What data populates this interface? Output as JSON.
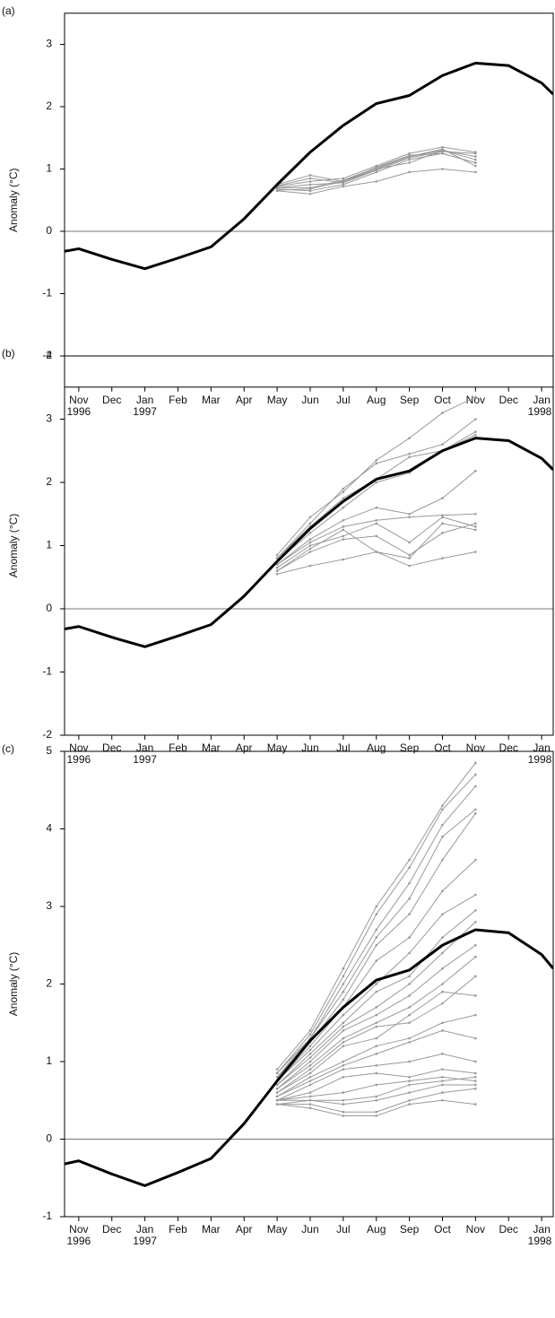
{
  "chart_data": [
    {
      "type": "line",
      "panel_label": "(a)",
      "y_label": "Anomaly (°C)",
      "xlim": [
        -0.43,
        14.35
      ],
      "xticks": [
        {
          "value": 0,
          "label": "Nov"
        },
        {
          "value": 1,
          "label": "Dec"
        },
        {
          "value": 2,
          "label": "Jan"
        },
        {
          "value": 3,
          "label": "Feb"
        },
        {
          "value": 4,
          "label": "Mar"
        },
        {
          "value": 5,
          "label": "Apr"
        },
        {
          "value": 6,
          "label": "May"
        },
        {
          "value": 7,
          "label": "Jun"
        },
        {
          "value": 8,
          "label": "Jul"
        },
        {
          "value": 9,
          "label": "Aug"
        },
        {
          "value": 10,
          "label": "Sep"
        },
        {
          "value": 11,
          "label": "Oct"
        },
        {
          "value": 12,
          "label": "Nov"
        },
        {
          "value": 13,
          "label": "Dec"
        },
        {
          "value": 14,
          "label": "Jan"
        }
      ],
      "year_labels": [
        {
          "value": 0,
          "label": "1996"
        },
        {
          "value": 2,
          "label": "1997"
        },
        {
          "value": 14,
          "label": "1998"
        }
      ],
      "ylim": [
        -2.5,
        3.5
      ],
      "yticks": [
        -2,
        -1,
        0,
        1,
        2,
        3
      ],
      "zero_line": true,
      "observed": {
        "color": "#000000",
        "x": [
          -0.43,
          0,
          1,
          2,
          3,
          4,
          5,
          6,
          7,
          8,
          9,
          10,
          11,
          12,
          13,
          14,
          14.35
        ],
        "values": [
          -0.32,
          -0.28,
          -0.45,
          -0.6,
          -0.43,
          -0.25,
          0.2,
          0.75,
          1.27,
          1.7,
          2.05,
          2.18,
          2.5,
          2.7,
          2.66,
          2.38,
          2.2
        ]
      },
      "ensemble": {
        "color": "#999999",
        "x": [
          6,
          7,
          8,
          9,
          10,
          11,
          12
        ],
        "series": [
          {
            "values": [
              0.7,
              0.75,
              0.78,
              1.0,
              1.2,
              1.3,
              1.2
            ]
          },
          {
            "values": [
              0.72,
              0.8,
              0.85,
              1.05,
              1.25,
              1.35,
              1.27
            ]
          },
          {
            "values": [
              0.68,
              0.65,
              0.75,
              0.95,
              1.15,
              1.25,
              1.1
            ]
          },
          {
            "values": [
              0.75,
              0.9,
              0.8,
              1.0,
              1.1,
              1.3,
              1.15
            ]
          },
          {
            "values": [
              0.65,
              0.6,
              0.72,
              0.8,
              0.95,
              1.0,
              0.95
            ]
          },
          {
            "values": [
              0.7,
              0.7,
              0.82,
              1.02,
              1.2,
              1.32,
              1.05
            ]
          },
          {
            "values": [
              0.73,
              0.85,
              0.78,
              0.98,
              1.18,
              1.28,
              1.25
            ]
          },
          {
            "values": [
              0.66,
              0.68,
              0.8,
              1.03,
              1.22,
              1.25,
              1.1
            ]
          }
        ]
      }
    },
    {
      "type": "line",
      "panel_label": "(b)",
      "y_label": "Anomaly (°C)",
      "xlim": [
        -0.43,
        14.35
      ],
      "xticks": [
        {
          "value": 0,
          "label": "Nov"
        },
        {
          "value": 1,
          "label": "Dec"
        },
        {
          "value": 2,
          "label": "Jan"
        },
        {
          "value": 3,
          "label": "Feb"
        },
        {
          "value": 4,
          "label": "Mar"
        },
        {
          "value": 5,
          "label": "Apr"
        },
        {
          "value": 6,
          "label": "May"
        },
        {
          "value": 7,
          "label": "Jun"
        },
        {
          "value": 8,
          "label": "Jul"
        },
        {
          "value": 9,
          "label": "Aug"
        },
        {
          "value": 10,
          "label": "Sep"
        },
        {
          "value": 11,
          "label": "Oct"
        },
        {
          "value": 12,
          "label": "Nov"
        },
        {
          "value": 13,
          "label": "Dec"
        },
        {
          "value": 14,
          "label": "Jan"
        }
      ],
      "year_labels": [
        {
          "value": 0,
          "label": "1996"
        },
        {
          "value": 2,
          "label": "1997"
        },
        {
          "value": 14,
          "label": "1998"
        }
      ],
      "ylim": [
        -2,
        4
      ],
      "yticks": [
        -2,
        -1,
        0,
        1,
        2,
        3,
        4
      ],
      "zero_line": true,
      "observed": {
        "color": "#000000",
        "x": [
          -0.43,
          0,
          1,
          2,
          3,
          4,
          5,
          6,
          7,
          8,
          9,
          10,
          11,
          12,
          13,
          14,
          14.35
        ],
        "values": [
          -0.32,
          -0.28,
          -0.45,
          -0.6,
          -0.43,
          -0.25,
          0.2,
          0.75,
          1.27,
          1.7,
          2.05,
          2.18,
          2.5,
          2.7,
          2.66,
          2.38,
          2.2
        ]
      },
      "ensemble": {
        "color": "#999999",
        "x": [
          6,
          7,
          8,
          9,
          10,
          11,
          12
        ],
        "series": [
          {
            "values": [
              0.85,
              1.45,
              1.85,
              2.35,
              2.7,
              3.1,
              3.35
            ]
          },
          {
            "values": [
              0.8,
              1.35,
              1.9,
              2.3,
              2.45,
              2.6,
              3.0
            ]
          },
          {
            "values": [
              0.8,
              1.3,
              1.75,
              2.05,
              2.4,
              2.5,
              2.8
            ]
          },
          {
            "values": [
              0.75,
              1.2,
              1.6,
              2.0,
              2.15,
              2.5,
              2.75
            ]
          },
          {
            "values": [
              0.7,
              1.1,
              1.4,
              1.6,
              1.5,
              1.75,
              2.18
            ]
          },
          {
            "values": [
              0.7,
              1.05,
              1.3,
              1.4,
              1.45,
              1.48,
              1.5
            ]
          },
          {
            "values": [
              0.65,
              1.0,
              1.15,
              1.35,
              1.05,
              1.45,
              1.3
            ]
          },
          {
            "values": [
              0.6,
              0.9,
              1.1,
              1.15,
              0.85,
              1.2,
              1.35
            ]
          },
          {
            "values": [
              0.6,
              0.95,
              1.25,
              0.9,
              0.68,
              0.8,
              0.9
            ]
          },
          {
            "values": [
              0.55,
              0.68,
              0.78,
              0.9,
              0.8,
              1.35,
              1.25
            ]
          }
        ]
      }
    },
    {
      "type": "line",
      "panel_label": "(c)",
      "y_label": "Anomaly (°C)",
      "xlim": [
        -0.43,
        14.35
      ],
      "xticks": [
        {
          "value": 0,
          "label": "Nov"
        },
        {
          "value": 1,
          "label": "Dec"
        },
        {
          "value": 2,
          "label": "Jan"
        },
        {
          "value": 3,
          "label": "Feb"
        },
        {
          "value": 4,
          "label": "Mar"
        },
        {
          "value": 5,
          "label": "Apr"
        },
        {
          "value": 6,
          "label": "May"
        },
        {
          "value": 7,
          "label": "Jun"
        },
        {
          "value": 8,
          "label": "Jul"
        },
        {
          "value": 9,
          "label": "Aug"
        },
        {
          "value": 10,
          "label": "Sep"
        },
        {
          "value": 11,
          "label": "Oct"
        },
        {
          "value": 12,
          "label": "Nov"
        },
        {
          "value": 13,
          "label": "Dec"
        },
        {
          "value": 14,
          "label": "Jan"
        }
      ],
      "year_labels": [
        {
          "value": 0,
          "label": "1996"
        },
        {
          "value": 2,
          "label": "1997"
        },
        {
          "value": 14,
          "label": "1998"
        }
      ],
      "ylim": [
        -1,
        5
      ],
      "yticks": [
        -1,
        0,
        1,
        2,
        3,
        4,
        5
      ],
      "zero_line": true,
      "observed": {
        "color": "#000000",
        "x": [
          -0.43,
          0,
          1,
          2,
          3,
          4,
          5,
          6,
          7,
          8,
          9,
          10,
          11,
          12,
          13,
          14,
          14.35
        ],
        "values": [
          -0.32,
          -0.28,
          -0.45,
          -0.6,
          -0.43,
          -0.25,
          0.2,
          0.75,
          1.27,
          1.7,
          2.05,
          2.18,
          2.5,
          2.7,
          2.66,
          2.38,
          2.2
        ]
      },
      "ensemble": {
        "color": "#999999",
        "x": [
          6,
          7,
          8,
          9,
          10,
          11,
          12
        ],
        "series": [
          {
            "values": [
              0.9,
              1.4,
              2.2,
              3.0,
              3.6,
              4.3,
              4.85
            ]
          },
          {
            "values": [
              0.85,
              1.35,
              2.1,
              2.9,
              3.5,
              4.25,
              4.7
            ]
          },
          {
            "values": [
              0.85,
              1.3,
              2.0,
              2.7,
              3.3,
              4.05,
              4.55
            ]
          },
          {
            "values": [
              0.8,
              1.3,
              1.9,
              2.6,
              3.1,
              3.9,
              4.25
            ]
          },
          {
            "values": [
              0.8,
              1.25,
              1.8,
              2.5,
              2.9,
              3.6,
              4.2
            ]
          },
          {
            "values": [
              0.75,
              1.2,
              1.7,
              2.3,
              2.6,
              3.2,
              3.6
            ]
          },
          {
            "values": [
              0.75,
              1.15,
              1.6,
              2.0,
              2.4,
              2.9,
              3.15
            ]
          },
          {
            "values": [
              0.7,
              1.1,
              1.5,
              1.9,
              2.1,
              2.6,
              2.95
            ]
          },
          {
            "values": [
              0.7,
              1.05,
              1.45,
              1.7,
              2.0,
              2.4,
              2.8
            ]
          },
          {
            "values": [
              0.65,
              1.0,
              1.4,
              1.6,
              1.85,
              2.2,
              2.5
            ]
          },
          {
            "values": [
              0.65,
              0.95,
              1.3,
              1.5,
              1.7,
              2.0,
              2.35
            ]
          },
          {
            "values": [
              0.6,
              0.9,
              1.25,
              1.45,
              1.5,
              1.75,
              2.1
            ]
          },
          {
            "values": [
              0.6,
              0.85,
              1.2,
              1.3,
              1.6,
              1.9,
              1.85
            ]
          },
          {
            "values": [
              0.55,
              0.8,
              1.0,
              1.2,
              1.3,
              1.5,
              1.6
            ]
          },
          {
            "values": [
              0.55,
              0.75,
              0.95,
              1.1,
              1.25,
              1.4,
              1.3
            ]
          },
          {
            "values": [
              0.5,
              0.7,
              0.9,
              0.95,
              1.0,
              1.1,
              1.0
            ]
          },
          {
            "values": [
              0.5,
              0.6,
              0.8,
              0.85,
              0.8,
              0.9,
              0.85
            ]
          },
          {
            "values": [
              0.5,
              0.55,
              0.6,
              0.7,
              0.75,
              0.8,
              0.75
            ]
          },
          {
            "values": [
              0.45,
              0.5,
              0.45,
              0.5,
              0.6,
              0.7,
              0.7
            ]
          },
          {
            "values": [
              0.45,
              0.45,
              0.35,
              0.35,
              0.5,
              0.6,
              0.65
            ]
          },
          {
            "values": [
              0.45,
              0.4,
              0.3,
              0.3,
              0.45,
              0.5,
              0.45
            ]
          },
          {
            "values": [
              0.5,
              0.5,
              0.5,
              0.55,
              0.7,
              0.75,
              0.8
            ]
          }
        ]
      }
    }
  ]
}
